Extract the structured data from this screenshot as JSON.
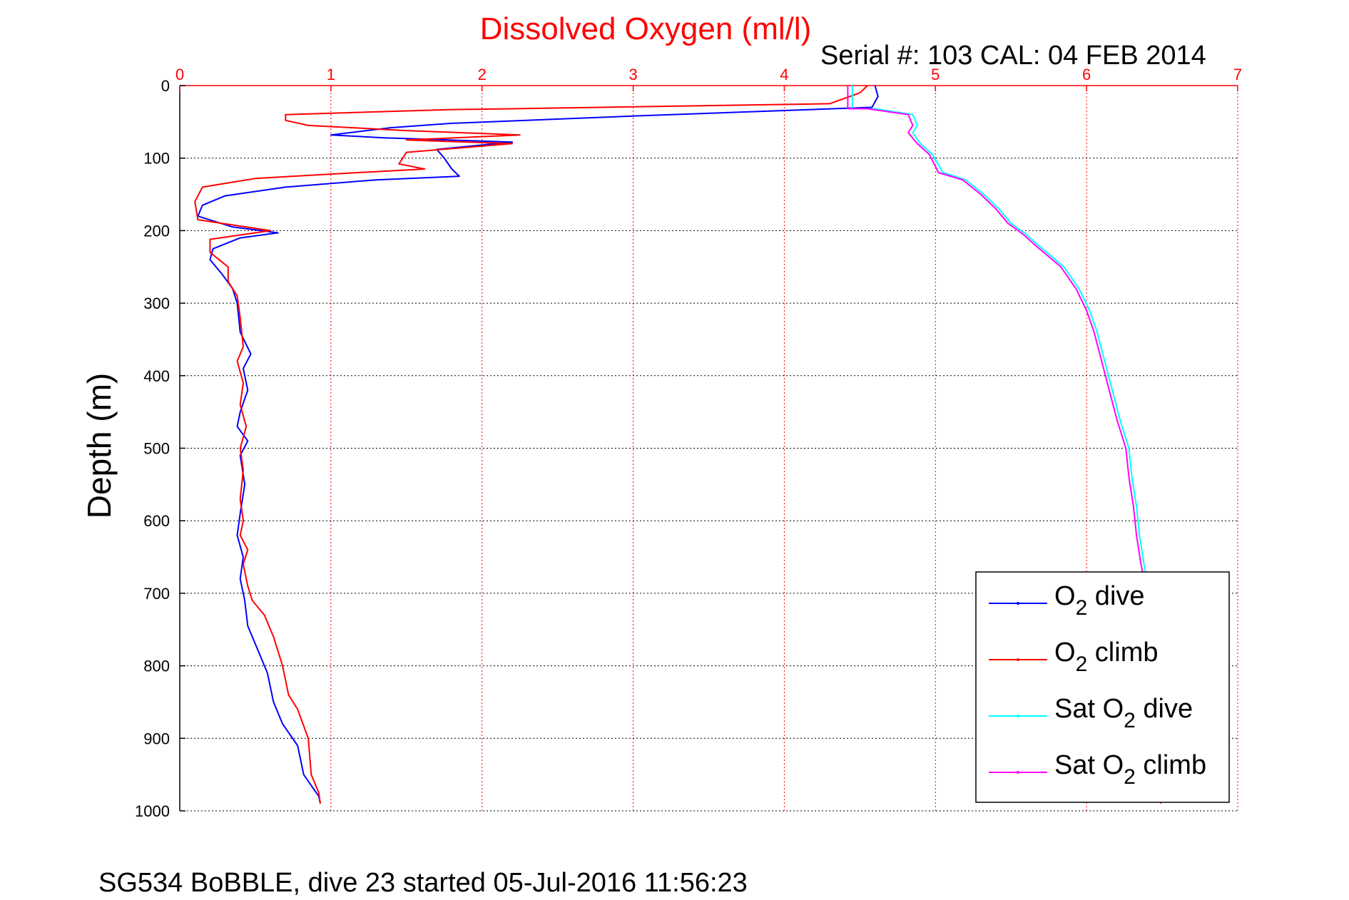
{
  "chart_data": {
    "type": "line",
    "title": "Dissolved Oxygen (ml/l)",
    "serial_label": "Serial #: 103  CAL: 04 FEB 2014",
    "ylabel": "Depth (m)",
    "footer": "SG534 BoBBLE, dive 23 started 05-Jul-2016 11:56:23",
    "x_axis_position": "top",
    "y_reversed": true,
    "xlim": [
      0,
      7
    ],
    "ylim": [
      0,
      1000
    ],
    "xticks": [
      0,
      1,
      2,
      3,
      4,
      5,
      6,
      7
    ],
    "xtick_labels": [
      "0",
      "1",
      "2",
      "3",
      "4",
      "5",
      "6",
      "7"
    ],
    "yticks": [
      0,
      100,
      200,
      300,
      400,
      500,
      600,
      700,
      800,
      900,
      1000
    ],
    "ytick_labels": [
      "0",
      "100",
      "200",
      "300",
      "400",
      "500",
      "600",
      "700",
      "800",
      "900",
      "1000"
    ],
    "grid": true,
    "grid_color": "#000000",
    "xgrid_color": "#ff0000",
    "axis_color": "#ff0000",
    "legend_position": "bottom-right",
    "series": [
      {
        "name": "O2 dive",
        "legend_main": "O",
        "legend_sub": "2",
        "legend_tail": " dive",
        "color": "#0000ff",
        "points": [
          [
            4.6,
            0
          ],
          [
            4.62,
            15
          ],
          [
            4.58,
            30
          ],
          [
            3.0,
            42
          ],
          [
            1.8,
            52
          ],
          [
            1.4,
            58
          ],
          [
            1.0,
            68
          ],
          [
            1.35,
            72
          ],
          [
            2.2,
            78
          ],
          [
            1.7,
            88
          ],
          [
            1.75,
            100
          ],
          [
            1.8,
            115
          ],
          [
            1.85,
            125
          ],
          [
            1.3,
            130
          ],
          [
            0.7,
            140
          ],
          [
            0.3,
            152
          ],
          [
            0.15,
            165
          ],
          [
            0.12,
            180
          ],
          [
            0.35,
            195
          ],
          [
            0.65,
            203
          ],
          [
            0.4,
            210
          ],
          [
            0.22,
            225
          ],
          [
            0.2,
            240
          ],
          [
            0.28,
            260
          ],
          [
            0.35,
            280
          ],
          [
            0.38,
            300
          ],
          [
            0.4,
            340
          ],
          [
            0.47,
            370
          ],
          [
            0.42,
            390
          ],
          [
            0.45,
            420
          ],
          [
            0.4,
            450
          ],
          [
            0.38,
            470
          ],
          [
            0.45,
            490
          ],
          [
            0.4,
            510
          ],
          [
            0.43,
            550
          ],
          [
            0.4,
            590
          ],
          [
            0.38,
            620
          ],
          [
            0.42,
            650
          ],
          [
            0.4,
            680
          ],
          [
            0.43,
            710
          ],
          [
            0.45,
            745
          ],
          [
            0.52,
            780
          ],
          [
            0.58,
            810
          ],
          [
            0.62,
            850
          ],
          [
            0.68,
            880
          ],
          [
            0.78,
            910
          ],
          [
            0.82,
            950
          ],
          [
            0.92,
            980
          ],
          [
            0.93,
            990
          ]
        ]
      },
      {
        "name": "O2 climb",
        "legend_main": "O",
        "legend_sub": "2",
        "legend_tail": " climb",
        "color": "#ff0000",
        "points": [
          [
            4.55,
            0
          ],
          [
            4.5,
            10
          ],
          [
            4.3,
            25
          ],
          [
            2.2,
            32
          ],
          [
            1.8,
            33
          ],
          [
            0.7,
            40
          ],
          [
            0.7,
            48
          ],
          [
            0.85,
            55
          ],
          [
            1.5,
            62
          ],
          [
            2.25,
            68
          ],
          [
            1.5,
            75
          ],
          [
            2.2,
            80
          ],
          [
            1.5,
            92
          ],
          [
            1.45,
            108
          ],
          [
            1.62,
            115
          ],
          [
            1.0,
            122
          ],
          [
            0.5,
            128
          ],
          [
            0.15,
            140
          ],
          [
            0.1,
            160
          ],
          [
            0.12,
            185
          ],
          [
            0.6,
            200
          ],
          [
            0.2,
            212
          ],
          [
            0.2,
            230
          ],
          [
            0.32,
            250
          ],
          [
            0.32,
            270
          ],
          [
            0.38,
            290
          ],
          [
            0.4,
            320
          ],
          [
            0.42,
            360
          ],
          [
            0.38,
            380
          ],
          [
            0.42,
            410
          ],
          [
            0.4,
            440
          ],
          [
            0.44,
            470
          ],
          [
            0.4,
            500
          ],
          [
            0.42,
            530
          ],
          [
            0.4,
            570
          ],
          [
            0.42,
            600
          ],
          [
            0.4,
            620
          ],
          [
            0.45,
            640
          ],
          [
            0.42,
            660
          ],
          [
            0.45,
            690
          ],
          [
            0.48,
            710
          ],
          [
            0.56,
            730
          ],
          [
            0.62,
            760
          ],
          [
            0.68,
            800
          ],
          [
            0.72,
            840
          ],
          [
            0.78,
            860
          ],
          [
            0.85,
            900
          ],
          [
            0.87,
            950
          ],
          [
            0.92,
            975
          ],
          [
            0.93,
            990
          ]
        ]
      },
      {
        "name": "Sat O2 dive",
        "legend_main": "Sat O",
        "legend_sub": "2",
        "legend_tail": " dive",
        "color": "#00ffff",
        "points": [
          [
            4.45,
            0
          ],
          [
            4.45,
            32
          ],
          [
            4.6,
            32
          ],
          [
            4.85,
            40
          ],
          [
            4.88,
            55
          ],
          [
            4.85,
            65
          ],
          [
            4.9,
            80
          ],
          [
            4.98,
            95
          ],
          [
            5.05,
            120
          ],
          [
            5.2,
            130
          ],
          [
            5.32,
            150
          ],
          [
            5.42,
            170
          ],
          [
            5.5,
            190
          ],
          [
            5.6,
            205
          ],
          [
            5.68,
            220
          ],
          [
            5.85,
            250
          ],
          [
            5.95,
            280
          ],
          [
            6.02,
            310
          ],
          [
            6.07,
            340
          ],
          [
            6.12,
            380
          ],
          [
            6.17,
            420
          ],
          [
            6.22,
            460
          ],
          [
            6.28,
            500
          ],
          [
            6.3,
            540
          ],
          [
            6.33,
            580
          ],
          [
            6.35,
            620
          ],
          [
            6.38,
            660
          ],
          [
            6.4,
            680
          ]
        ]
      },
      {
        "name": "Sat O2 climb",
        "legend_main": "Sat O",
        "legend_sub": "2",
        "legend_tail": " climb",
        "color": "#ff00ff",
        "points": [
          [
            4.42,
            0
          ],
          [
            4.42,
            32
          ],
          [
            4.55,
            32
          ],
          [
            4.82,
            40
          ],
          [
            4.85,
            55
          ],
          [
            4.82,
            65
          ],
          [
            4.88,
            80
          ],
          [
            4.96,
            95
          ],
          [
            5.02,
            120
          ],
          [
            5.18,
            130
          ],
          [
            5.3,
            150
          ],
          [
            5.4,
            170
          ],
          [
            5.48,
            190
          ],
          [
            5.58,
            205
          ],
          [
            5.66,
            220
          ],
          [
            5.83,
            250
          ],
          [
            5.93,
            280
          ],
          [
            6.0,
            310
          ],
          [
            6.05,
            340
          ],
          [
            6.1,
            380
          ],
          [
            6.15,
            420
          ],
          [
            6.2,
            460
          ],
          [
            6.26,
            500
          ],
          [
            6.28,
            540
          ],
          [
            6.31,
            580
          ],
          [
            6.33,
            620
          ],
          [
            6.36,
            660
          ],
          [
            6.38,
            680
          ],
          [
            6.41,
            720
          ],
          [
            6.43,
            780
          ],
          [
            6.45,
            840
          ],
          [
            6.47,
            900
          ],
          [
            6.48,
            960
          ],
          [
            6.49,
            990
          ]
        ]
      }
    ]
  }
}
